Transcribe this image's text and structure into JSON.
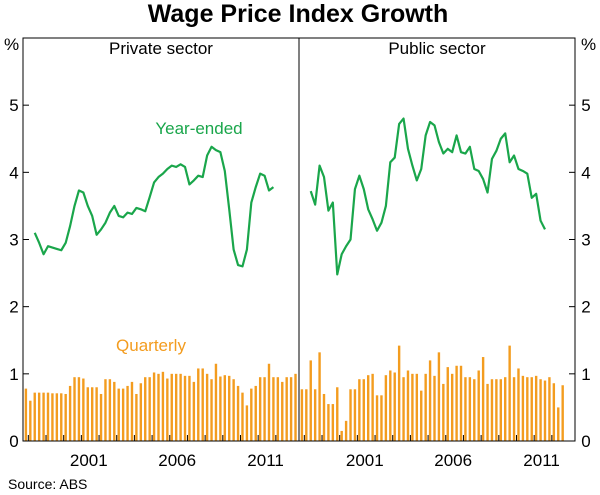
{
  "chart_data": {
    "type": "bar+line",
    "title": "Wage Price Index Growth",
    "source": "Source: ABS",
    "y_unit_left": "%",
    "y_unit_right": "%",
    "ylim": [
      0,
      6
    ],
    "yticks": [
      "0",
      "1",
      "2",
      "3",
      "4",
      "5"
    ],
    "xticks": [
      "2001",
      "2006",
      "2011"
    ],
    "colors": {
      "year_ended": "#1aa64b",
      "quarterly": "#f39c1f",
      "axis": "#000000"
    },
    "annotations": {
      "year_ended": "Year-ended",
      "quarterly": "Quarterly"
    },
    "quarters_start": "1997 Q4",
    "panels": [
      {
        "name": "Private sector",
        "year_ended": {
          "start_index": 2,
          "values": [
            3.1,
            2.95,
            2.78,
            2.9,
            2.88,
            2.86,
            2.84,
            2.95,
            3.2,
            3.5,
            3.73,
            3.7,
            3.5,
            3.35,
            3.07,
            3.15,
            3.25,
            3.4,
            3.5,
            3.35,
            3.33,
            3.4,
            3.38,
            3.47,
            3.45,
            3.42,
            3.63,
            3.85,
            3.93,
            3.98,
            4.05,
            4.1,
            4.08,
            4.12,
            4.08,
            3.82,
            3.88,
            3.95,
            3.93,
            4.25,
            4.38,
            4.33,
            4.3,
            4.02,
            3.45,
            2.85,
            2.62,
            2.6,
            2.85,
            3.55,
            3.78,
            3.98,
            3.95,
            3.73,
            3.78
          ]
        },
        "quarterly": {
          "values": [
            0.78,
            0.6,
            0.72,
            0.72,
            0.72,
            0.72,
            0.71,
            0.71,
            0.71,
            0.7,
            0.82,
            0.95,
            0.95,
            0.93,
            0.8,
            0.8,
            0.8,
            0.7,
            0.92,
            0.92,
            0.88,
            0.78,
            0.78,
            0.82,
            0.88,
            0.7,
            0.86,
            0.95,
            0.95,
            1.02,
            1.0,
            1.03,
            0.93,
            1.0,
            1.0,
            1.0,
            0.97,
            0.97,
            0.88,
            1.08,
            1.08,
            1.0,
            0.92,
            1.15,
            0.96,
            0.98,
            0.97,
            0.92,
            0.82,
            0.72,
            0.53,
            0.78,
            0.82,
            0.95,
            0.95,
            1.15,
            0.95,
            0.95,
            0.88,
            0.95,
            0.95,
            1.0
          ]
        }
      },
      {
        "name": "Public sector",
        "year_ended": {
          "start_index": 2,
          "values": [
            3.72,
            3.52,
            4.1,
            3.93,
            3.43,
            3.55,
            2.48,
            2.78,
            2.9,
            3.0,
            3.75,
            3.95,
            3.75,
            3.45,
            3.3,
            3.13,
            3.25,
            3.5,
            4.15,
            4.22,
            4.72,
            4.8,
            4.35,
            4.1,
            3.88,
            4.05,
            4.55,
            4.75,
            4.7,
            4.45,
            4.28,
            4.35,
            4.3,
            4.55,
            4.3,
            4.28,
            4.38,
            4.05,
            4.02,
            3.9,
            3.7,
            4.2,
            4.32,
            4.5,
            4.58,
            4.15,
            4.25,
            4.05,
            4.02,
            3.98,
            3.62,
            3.68,
            3.28,
            3.15
          ]
        },
        "quarterly": {
          "values": [
            0.77,
            0.77,
            1.2,
            0.77,
            1.32,
            0.7,
            0.55,
            0.55,
            0.8,
            0.15,
            0.3,
            0.77,
            0.77,
            0.92,
            0.92,
            0.98,
            1.0,
            0.68,
            0.68,
            0.98,
            1.05,
            1.02,
            1.42,
            0.95,
            1.05,
            1.0,
            1.0,
            0.75,
            1.0,
            1.2,
            0.97,
            1.32,
            0.85,
            1.1,
            1.0,
            1.12,
            1.12,
            0.95,
            0.95,
            0.92,
            1.05,
            1.25,
            0.85,
            0.92,
            0.92,
            0.92,
            0.95,
            1.42,
            0.95,
            1.08,
            0.97,
            0.95,
            0.95,
            0.97,
            0.92,
            0.9,
            0.95,
            0.86,
            0.5,
            0.83
          ]
        }
      }
    ]
  }
}
